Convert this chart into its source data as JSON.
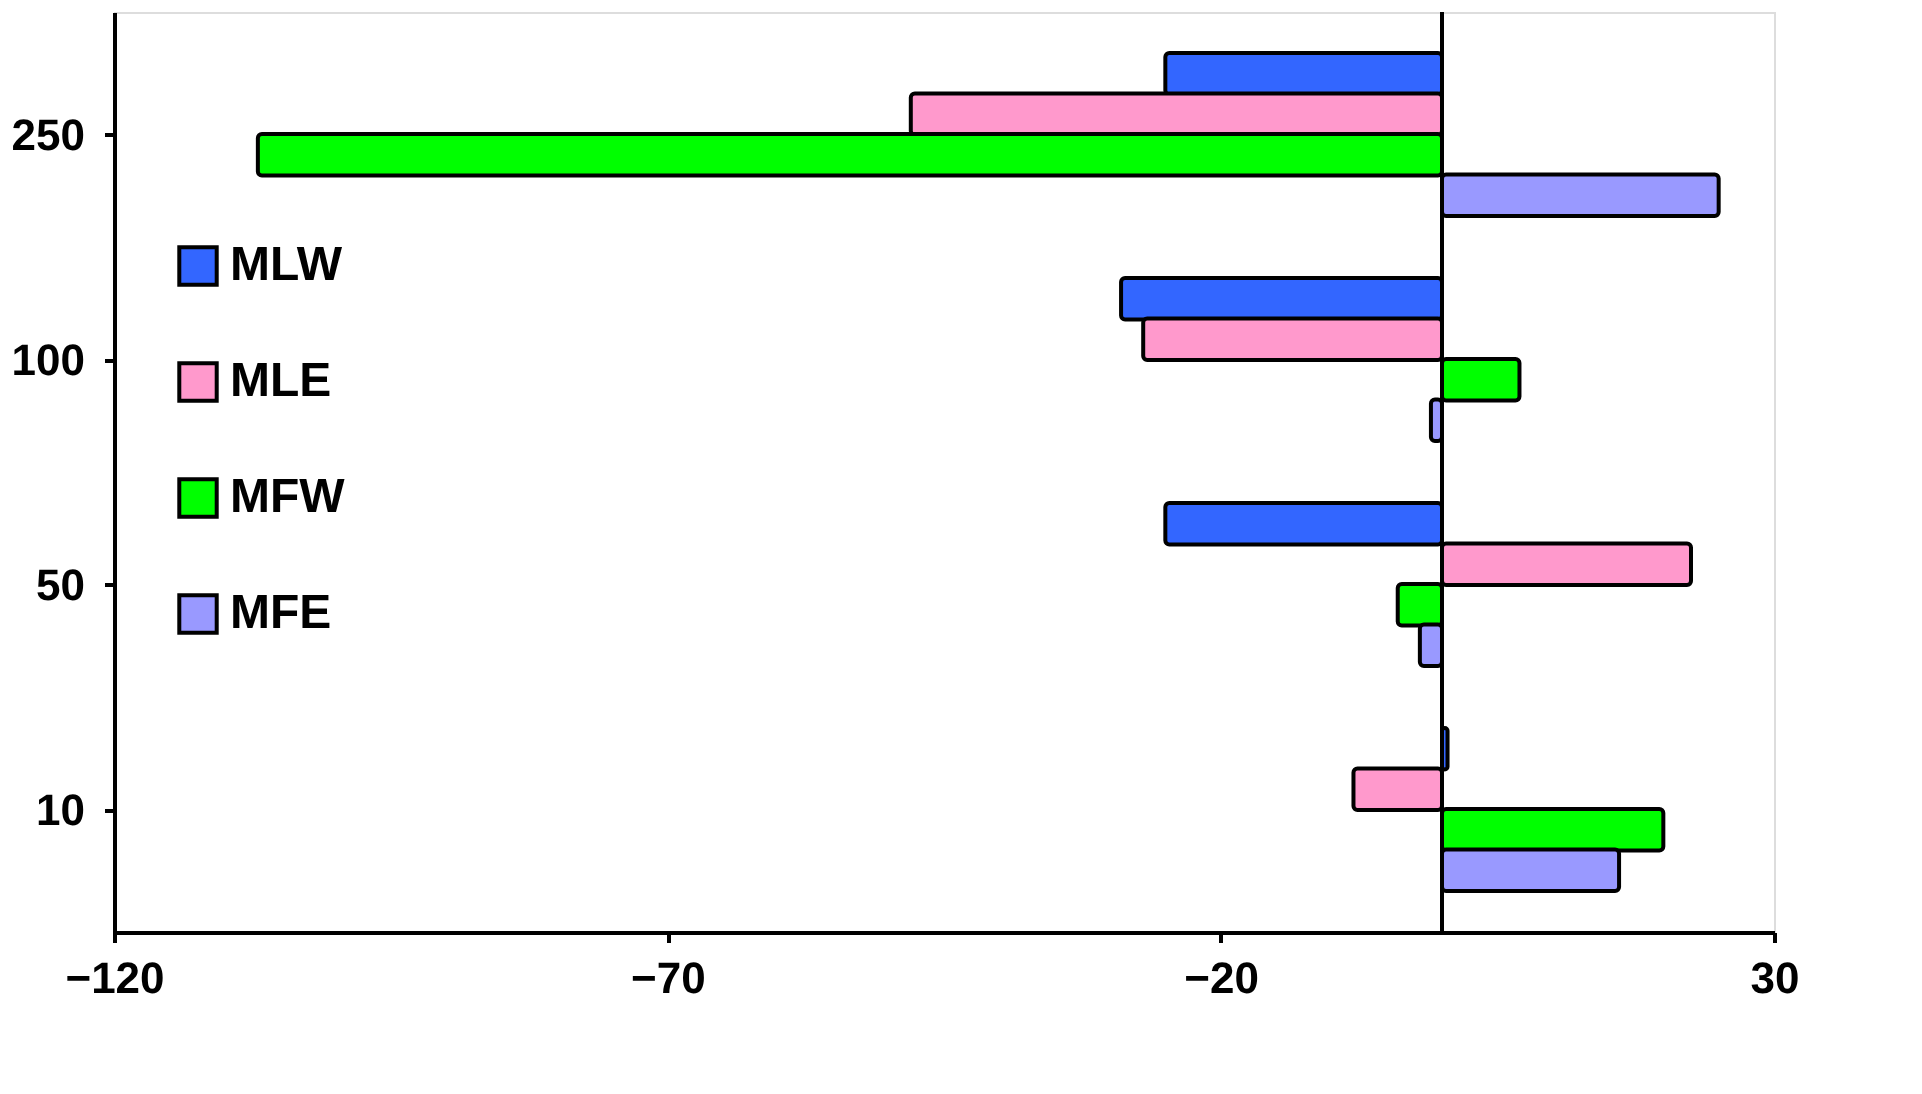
{
  "chart_data": {
    "type": "bar",
    "orientation": "horizontal",
    "categories": [
      "250",
      "100",
      "50",
      "10"
    ],
    "series": [
      {
        "name": "MLW",
        "color": "#3366ff",
        "values": [
          -25,
          -29,
          -25,
          0.5
        ]
      },
      {
        "name": "MLE",
        "color": "#ff99cc",
        "values": [
          -48,
          -27,
          22.5,
          -8
        ]
      },
      {
        "name": "MFW",
        "color": "#00ff00",
        "values": [
          -107,
          7,
          -4,
          20
        ]
      },
      {
        "name": "MFE",
        "color": "#9999ff",
        "values": [
          25,
          -1,
          -2,
          16
        ]
      }
    ],
    "xlim": [
      -120,
      30
    ],
    "xticks": [
      -120,
      -70,
      -20,
      30
    ],
    "ref_lines": [
      {
        "axis": "x",
        "value": 0
      }
    ],
    "grid": false,
    "legend": "left"
  }
}
